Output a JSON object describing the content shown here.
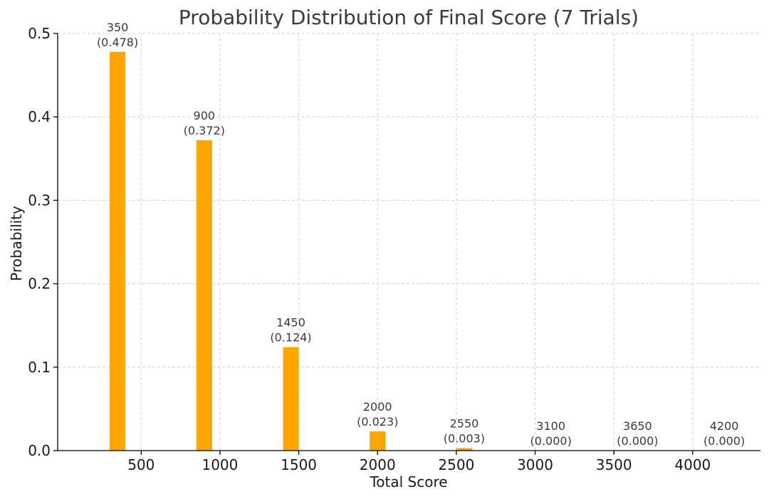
{
  "chart_data": {
    "type": "bar",
    "title": "Probability Distribution of Final Score (7 Trials)",
    "xlabel": "Total Score",
    "ylabel": "Probability",
    "x": [
      350,
      900,
      1450,
      2000,
      2550,
      3100,
      3650,
      4200
    ],
    "values": [
      0.478,
      0.372,
      0.124,
      0.023,
      0.003,
      0.0,
      0.0,
      0.0
    ],
    "data_labels": [
      [
        "350",
        "(0.478)"
      ],
      [
        "900",
        "(0.372)"
      ],
      [
        "1450",
        "(0.124)"
      ],
      [
        "2000",
        "(0.023)"
      ],
      [
        "2550",
        "(0.003)"
      ],
      [
        "3100",
        "(0.000)"
      ],
      [
        "3650",
        "(0.000)"
      ],
      [
        "4200",
        "(0.000)"
      ]
    ],
    "xticks": [
      "500",
      "1000",
      "1500",
      "2000",
      "2500",
      "3000",
      "3500",
      "4000"
    ],
    "yticks": [
      "0.0",
      "0.1",
      "0.2",
      "0.3",
      "0.4",
      "0.5"
    ],
    "xlim": [
      -30,
      4430
    ],
    "ylim": [
      0,
      0.5
    ],
    "grid": true,
    "bar_color": "#FFA500",
    "bar_width": 100
  }
}
